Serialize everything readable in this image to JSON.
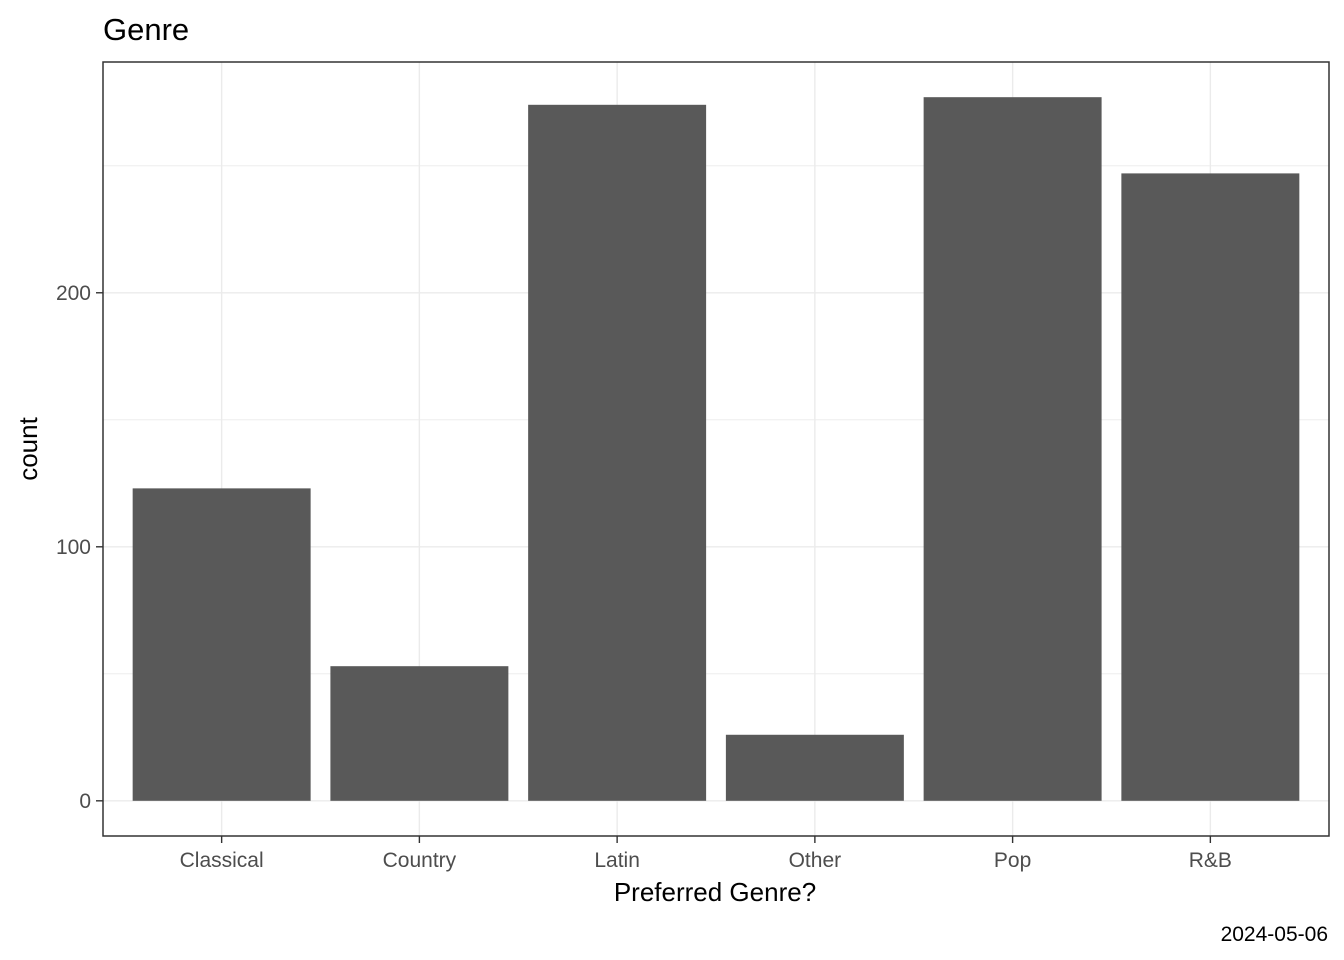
{
  "chart_data": {
    "type": "bar",
    "title": "Genre",
    "xlabel": "Preferred Genre?",
    "ylabel": "count",
    "caption": "2024-05-06",
    "categories": [
      "Classical",
      "Country",
      "Latin",
      "Other",
      "Pop",
      "R&B"
    ],
    "values": [
      123,
      53,
      274,
      26,
      277,
      247
    ],
    "ylim": [
      -13.85,
      290.85
    ],
    "yticks": [
      0,
      100,
      200
    ],
    "grid": true,
    "legend": "none",
    "bar_color": "#595959",
    "grid_color": "#ebebeb",
    "panel_border_color": "#333333"
  }
}
